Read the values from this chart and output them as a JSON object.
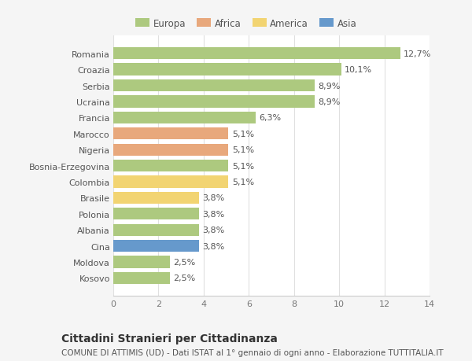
{
  "categories": [
    "Romania",
    "Croazia",
    "Serbia",
    "Ucraina",
    "Francia",
    "Marocco",
    "Nigeria",
    "Bosnia-Erzegovina",
    "Colombia",
    "Brasile",
    "Polonia",
    "Albania",
    "Cina",
    "Moldova",
    "Kosovo"
  ],
  "values": [
    12.7,
    10.1,
    8.9,
    8.9,
    6.3,
    5.1,
    5.1,
    5.1,
    5.1,
    3.8,
    3.8,
    3.8,
    3.8,
    2.5,
    2.5
  ],
  "labels": [
    "12,7%",
    "10,1%",
    "8,9%",
    "8,9%",
    "6,3%",
    "5,1%",
    "5,1%",
    "5,1%",
    "5,1%",
    "3,8%",
    "3,8%",
    "3,8%",
    "3,8%",
    "2,5%",
    "2,5%"
  ],
  "continents": [
    "Europa",
    "Europa",
    "Europa",
    "Europa",
    "Europa",
    "Africa",
    "Africa",
    "Europa",
    "America",
    "America",
    "Europa",
    "Europa",
    "Asia",
    "Europa",
    "Europa"
  ],
  "colors": {
    "Europa": "#adc97f",
    "Africa": "#e8a87c",
    "America": "#f2d472",
    "Asia": "#6699cc"
  },
  "legend_order": [
    "Europa",
    "Africa",
    "America",
    "Asia"
  ],
  "legend_colors": [
    "#adc97f",
    "#e8a87c",
    "#f2d472",
    "#6699cc"
  ],
  "xlim": [
    0,
    14
  ],
  "xticks": [
    0,
    2,
    4,
    6,
    8,
    10,
    12,
    14
  ],
  "title": "Cittadini Stranieri per Cittadinanza",
  "subtitle": "COMUNE DI ATTIMIS (UD) - Dati ISTAT al 1° gennaio di ogni anno - Elaborazione TUTTITALIA.IT",
  "fig_bg_color": "#f5f5f5",
  "plot_bg_color": "#ffffff",
  "bar_height": 0.75,
  "label_fontsize": 8,
  "tick_fontsize": 8,
  "title_fontsize": 10,
  "subtitle_fontsize": 7.5
}
